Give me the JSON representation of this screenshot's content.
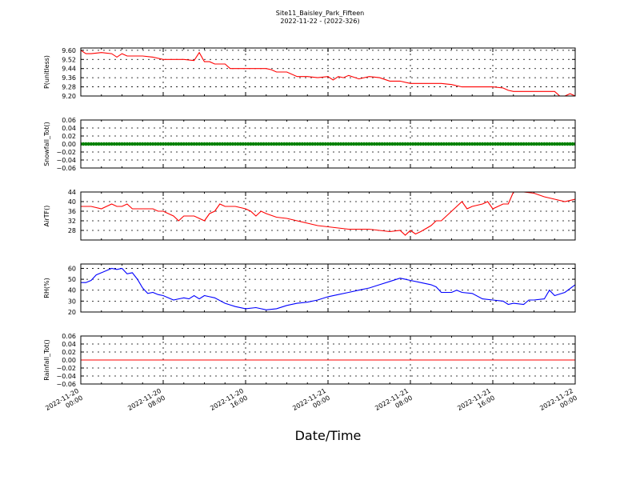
{
  "title": {
    "line1": "Site11_Baisley_Park_Fifteen",
    "line2": "2022-11-22 - (2022-326)"
  },
  "xlabel": "Date/Time",
  "x_ticks": [
    [
      "2022-11-20",
      "00:00"
    ],
    [
      "2022-11-20",
      "08:00"
    ],
    [
      "2022-11-20",
      "16:00"
    ],
    [
      "2022-11-21",
      "00:00"
    ],
    [
      "2022-11-21",
      "08:00"
    ],
    [
      "2022-11-21",
      "16:00"
    ],
    [
      "2022-11-22",
      "00:00"
    ]
  ],
  "colors": {
    "red": "#ff0000",
    "green": "#008000",
    "blue": "#0000ff"
  },
  "chart_data": [
    {
      "type": "line",
      "ylabel": "P(unitless)",
      "xlim": [
        "2022-11-20 00:00",
        "2022-11-22 00:00"
      ],
      "ylim": [
        9.2,
        9.62
      ],
      "yticks": [
        "9.60",
        "9.52",
        "9.44",
        "9.36",
        "9.28",
        "9.20"
      ],
      "color": "#ff0000",
      "marker": false,
      "grid": true,
      "x_hours": [
        0,
        0.5,
        1,
        2,
        3,
        3.5,
        4,
        4.5,
        5,
        6,
        7,
        8,
        9,
        10,
        11,
        11.5,
        12,
        12.5,
        13,
        14,
        14.5,
        15,
        16,
        17,
        18,
        18.5,
        19,
        20,
        21,
        22,
        23,
        24,
        24.5,
        25,
        25.5,
        26,
        27,
        28,
        29,
        30,
        31,
        32,
        33,
        34,
        35,
        36,
        37,
        38,
        39,
        40,
        41,
        41.5,
        42,
        43,
        44,
        45,
        46,
        46.5,
        47,
        47.5,
        48
      ],
      "values": [
        9.6,
        9.57,
        9.57,
        9.58,
        9.57,
        9.54,
        9.57,
        9.55,
        9.55,
        9.55,
        9.54,
        9.52,
        9.52,
        9.52,
        9.51,
        9.58,
        9.5,
        9.5,
        9.48,
        9.48,
        9.44,
        9.44,
        9.44,
        9.44,
        9.44,
        9.43,
        9.41,
        9.41,
        9.37,
        9.37,
        9.36,
        9.37,
        9.34,
        9.37,
        9.36,
        9.38,
        9.35,
        9.37,
        9.36,
        9.33,
        9.33,
        9.31,
        9.31,
        9.31,
        9.31,
        9.3,
        9.28,
        9.28,
        9.28,
        9.28,
        9.27,
        9.25,
        9.24,
        9.24,
        9.24,
        9.24,
        9.24,
        9.2,
        9.2,
        9.22,
        9.2
      ]
    },
    {
      "type": "scatter",
      "ylabel": "Snowfall_Tot()",
      "xlim": [
        "2022-11-20 00:00",
        "2022-11-22 00:00"
      ],
      "ylim": [
        -0.06,
        0.06
      ],
      "yticks": [
        "0.06",
        "0.04",
        "0.02",
        "0.00",
        "−0.02",
        "−0.04",
        "−0.06"
      ],
      "color": "#008000",
      "marker": true,
      "grid": true,
      "x_hours": [
        0,
        48
      ],
      "values": [
        0,
        0
      ]
    },
    {
      "type": "line",
      "ylabel": "AirTF()",
      "xlim": [
        "2022-11-20 00:00",
        "2022-11-22 00:00"
      ],
      "ylim": [
        24,
        44
      ],
      "yticks": [
        "44",
        "40",
        "36",
        "32",
        "28"
      ],
      "color": "#ff0000",
      "marker": false,
      "grid": true,
      "x_hours": [
        0,
        1,
        2,
        3,
        3.5,
        4,
        4.5,
        5,
        6,
        7,
        7.5,
        8,
        8.5,
        9,
        9.5,
        10,
        11,
        11.5,
        12,
        12.5,
        13,
        13.5,
        14,
        15,
        16,
        16.5,
        17,
        17.5,
        18,
        19,
        20,
        21,
        22,
        23,
        24,
        25,
        26,
        27,
        28,
        29,
        30,
        31,
        31.5,
        32,
        32.5,
        33,
        34,
        34.5,
        35,
        36,
        37,
        37.5,
        38,
        39,
        39.5,
        40,
        41,
        41.5,
        42,
        43,
        44,
        45,
        46,
        47,
        48
      ],
      "values": [
        38,
        38,
        37,
        39,
        38,
        38,
        39,
        37,
        37,
        37,
        36,
        36,
        35,
        34,
        32,
        34,
        34,
        33,
        32,
        35,
        36,
        39,
        38,
        38,
        37,
        36,
        34,
        36,
        35,
        33.5,
        33,
        32,
        31,
        30,
        29.5,
        29,
        28.5,
        28.5,
        28.5,
        28,
        27.5,
        28,
        26,
        28,
        26.5,
        27.5,
        30,
        32,
        32,
        36,
        40,
        37,
        38,
        39,
        40,
        37,
        39,
        39,
        44,
        44,
        43.5,
        42,
        41,
        40,
        41
      ]
    },
    {
      "type": "line",
      "ylabel": "RH(%)",
      "xlim": [
        "2022-11-20 00:00",
        "2022-11-22 00:00"
      ],
      "ylim": [
        20,
        64
      ],
      "yticks": [
        "60",
        "50",
        "40",
        "30",
        "20"
      ],
      "color": "#0000ff",
      "marker": false,
      "grid": true,
      "x_hours": [
        0,
        0.5,
        1,
        1.5,
        2,
        3,
        3.5,
        4,
        4.5,
        5,
        5.5,
        6,
        6.5,
        7,
        7.5,
        8,
        9,
        9.5,
        10,
        10.5,
        11,
        11.5,
        12,
        12.5,
        13,
        14,
        15,
        16,
        17,
        18,
        19,
        20,
        21,
        22,
        23,
        24,
        25,
        26,
        27,
        28,
        29,
        30,
        31,
        31.5,
        32,
        33,
        34,
        34.5,
        35,
        36,
        36.5,
        37,
        38,
        39,
        40,
        41,
        41.5,
        42,
        43,
        43.5,
        44,
        45,
        45.5,
        46,
        47,
        48
      ],
      "values": [
        47,
        47,
        49,
        54,
        56,
        60,
        59,
        60,
        55,
        56,
        50,
        42,
        37,
        38,
        36,
        35,
        31,
        32,
        33,
        32,
        35,
        32,
        35,
        34,
        33,
        28,
        25,
        23,
        24,
        22,
        23,
        26,
        28,
        29,
        31,
        34,
        36,
        38,
        40,
        42,
        45,
        48,
        51,
        50,
        49,
        47,
        45,
        43,
        38,
        38,
        40,
        38,
        37,
        32,
        31,
        30,
        27,
        28,
        27,
        31,
        31,
        32,
        40,
        35,
        38,
        45
      ]
    },
    {
      "type": "line",
      "ylabel": "Rainfall_Tot()",
      "xlim": [
        "2022-11-20 00:00",
        "2022-11-22 00:00"
      ],
      "ylim": [
        -0.06,
        0.06
      ],
      "yticks": [
        "0.06",
        "0.04",
        "0.02",
        "0.00",
        "−0.02",
        "−0.04",
        "−0.06"
      ],
      "color": "#ff0000",
      "marker": false,
      "grid": true,
      "x_hours": [
        0,
        48
      ],
      "values": [
        0,
        0
      ]
    }
  ]
}
